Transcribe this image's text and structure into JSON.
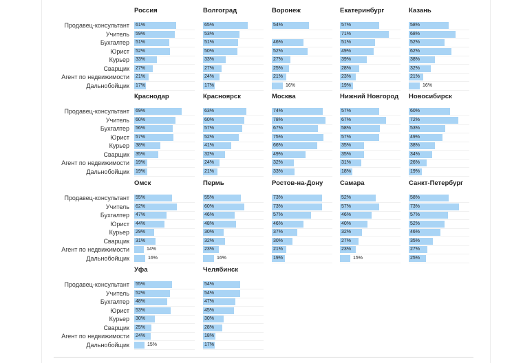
{
  "chart_data": {
    "type": "bar",
    "categories": [
      "Продавец-консультант",
      "Учитель",
      "Бухгалтер",
      "Юрист",
      "Курьер",
      "Сварщик",
      "Агент по недвижимости",
      "Дальнобойщик"
    ],
    "bar_color": "#a9d4f5",
    "xlim": [
      0,
      100
    ],
    "value_suffix": "%",
    "panels": [
      {
        "title": "Россия",
        "values": [
          61,
          59,
          51,
          52,
          33,
          27,
          21,
          17
        ]
      },
      {
        "title": "Волгоград",
        "values": [
          65,
          53,
          51,
          50,
          33,
          27,
          24,
          17
        ]
      },
      {
        "title": "Воронеж",
        "values": [
          54,
          null,
          46,
          52,
          27,
          25,
          21,
          16
        ]
      },
      {
        "title": "Екатеринбург",
        "values": [
          57,
          71,
          51,
          49,
          39,
          28,
          23,
          19
        ]
      },
      {
        "title": "Казань",
        "values": [
          58,
          68,
          52,
          62,
          38,
          32,
          21,
          16
        ]
      },
      {
        "title": "Краснодар",
        "values": [
          69,
          60,
          56,
          57,
          38,
          35,
          19,
          19
        ]
      },
      {
        "title": "Красноярск",
        "values": [
          63,
          60,
          57,
          52,
          41,
          32,
          24,
          21
        ]
      },
      {
        "title": "Москва",
        "values": [
          74,
          78,
          67,
          75,
          66,
          49,
          32,
          33
        ]
      },
      {
        "title": "Нижний Новгород",
        "values": [
          57,
          67,
          58,
          57,
          35,
          35,
          31,
          18
        ]
      },
      {
        "title": "Новосибирск",
        "values": [
          60,
          72,
          53,
          49,
          38,
          34,
          26,
          19
        ]
      },
      {
        "title": "Омск",
        "values": [
          55,
          62,
          47,
          44,
          29,
          31,
          14,
          16
        ]
      },
      {
        "title": "Пермь",
        "values": [
          55,
          60,
          46,
          48,
          30,
          32,
          23,
          16
        ]
      },
      {
        "title": "Ростов-на-Дону",
        "values": [
          73,
          73,
          57,
          46,
          37,
          30,
          21,
          19
        ]
      },
      {
        "title": "Самара",
        "values": [
          52,
          57,
          46,
          40,
          32,
          27,
          23,
          15
        ]
      },
      {
        "title": "Санкт-Петербург",
        "values": [
          58,
          73,
          57,
          52,
          46,
          35,
          27,
          25
        ]
      },
      {
        "title": "Уфа",
        "values": [
          55,
          52,
          48,
          53,
          30,
          25,
          24,
          15
        ]
      },
      {
        "title": "Челябинск",
        "values": [
          54,
          54,
          47,
          45,
          30,
          28,
          18,
          17
        ]
      }
    ]
  }
}
